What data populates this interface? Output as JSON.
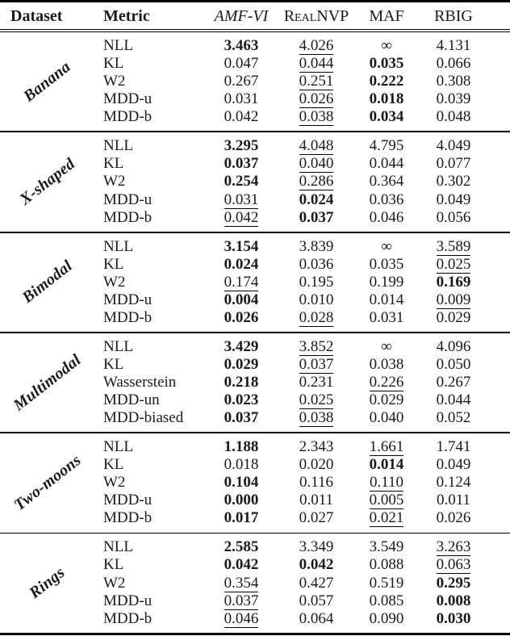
{
  "table": {
    "header": {
      "columns": [
        {
          "label": "Dataset",
          "style": "bold"
        },
        {
          "label": "Metric",
          "style": "bold"
        },
        {
          "label": "AMF-VI",
          "style": "italic"
        },
        {
          "label": "RealNVP",
          "style": "smallcaps"
        },
        {
          "label": "MAF",
          "style": "plain"
        },
        {
          "label": "RBIG",
          "style": "plain"
        }
      ]
    },
    "emphasis": {
      "bold_means": "best value",
      "underline_means": "second-best value"
    },
    "text_color": "#1a1a1a",
    "rule_color": "#000000",
    "sections": [
      {
        "dataset": "Banana",
        "rows": [
          {
            "metric": "NLL",
            "values": [
              {
                "text": "3.463",
                "style": "bold"
              },
              {
                "text": "4.026",
                "style": "underline"
              },
              {
                "text": "∞",
                "style": "plain"
              },
              {
                "text": "4.131",
                "style": "plain"
              }
            ]
          },
          {
            "metric": "KL",
            "values": [
              {
                "text": "0.047",
                "style": "plain"
              },
              {
                "text": "0.044",
                "style": "underline"
              },
              {
                "text": "0.035",
                "style": "bold"
              },
              {
                "text": "0.066",
                "style": "plain"
              }
            ]
          },
          {
            "metric": "W2",
            "values": [
              {
                "text": "0.267",
                "style": "plain"
              },
              {
                "text": "0.251",
                "style": "underline"
              },
              {
                "text": "0.222",
                "style": "bold"
              },
              {
                "text": "0.308",
                "style": "plain"
              }
            ]
          },
          {
            "metric": "MDD-u",
            "values": [
              {
                "text": "0.031",
                "style": "plain"
              },
              {
                "text": "0.026",
                "style": "underline"
              },
              {
                "text": "0.018",
                "style": "bold"
              },
              {
                "text": "0.039",
                "style": "plain"
              }
            ]
          },
          {
            "metric": "MDD-b",
            "values": [
              {
                "text": "0.042",
                "style": "plain"
              },
              {
                "text": "0.038",
                "style": "underline"
              },
              {
                "text": "0.034",
                "style": "bold"
              },
              {
                "text": "0.048",
                "style": "plain"
              }
            ]
          }
        ]
      },
      {
        "dataset": "X-shaped",
        "rows": [
          {
            "metric": "NLL",
            "values": [
              {
                "text": "3.295",
                "style": "bold"
              },
              {
                "text": "4.048",
                "style": "underline"
              },
              {
                "text": "4.795",
                "style": "plain"
              },
              {
                "text": "4.049",
                "style": "plain"
              }
            ]
          },
          {
            "metric": "KL",
            "values": [
              {
                "text": "0.037",
                "style": "bold"
              },
              {
                "text": "0.040",
                "style": "underline"
              },
              {
                "text": "0.044",
                "style": "plain"
              },
              {
                "text": "0.077",
                "style": "plain"
              }
            ]
          },
          {
            "metric": "W2",
            "values": [
              {
                "text": "0.254",
                "style": "bold"
              },
              {
                "text": "0.286",
                "style": "underline"
              },
              {
                "text": "0.364",
                "style": "plain"
              },
              {
                "text": "0.302",
                "style": "plain"
              }
            ]
          },
          {
            "metric": "MDD-u",
            "values": [
              {
                "text": "0.031",
                "style": "underline"
              },
              {
                "text": "0.024",
                "style": "bold"
              },
              {
                "text": "0.036",
                "style": "plain"
              },
              {
                "text": "0.049",
                "style": "plain"
              }
            ]
          },
          {
            "metric": "MDD-b",
            "values": [
              {
                "text": "0.042",
                "style": "underline"
              },
              {
                "text": "0.037",
                "style": "bold"
              },
              {
                "text": "0.046",
                "style": "plain"
              },
              {
                "text": "0.056",
                "style": "plain"
              }
            ]
          }
        ]
      },
      {
        "dataset": "Bimodal",
        "rows": [
          {
            "metric": "NLL",
            "values": [
              {
                "text": "3.154",
                "style": "bold"
              },
              {
                "text": "3.839",
                "style": "plain"
              },
              {
                "text": "∞",
                "style": "plain"
              },
              {
                "text": "3.589",
                "style": "underline"
              }
            ]
          },
          {
            "metric": "KL",
            "values": [
              {
                "text": "0.024",
                "style": "bold"
              },
              {
                "text": "0.036",
                "style": "plain"
              },
              {
                "text": "0.035",
                "style": "plain"
              },
              {
                "text": "0.025",
                "style": "underline"
              }
            ]
          },
          {
            "metric": "W2",
            "values": [
              {
                "text": "0.174",
                "style": "underline"
              },
              {
                "text": "0.195",
                "style": "plain"
              },
              {
                "text": "0.199",
                "style": "plain"
              },
              {
                "text": "0.169",
                "style": "bold"
              }
            ]
          },
          {
            "metric": "MDD-u",
            "values": [
              {
                "text": "0.004",
                "style": "bold"
              },
              {
                "text": "0.010",
                "style": "plain"
              },
              {
                "text": "0.014",
                "style": "plain"
              },
              {
                "text": "0.009",
                "style": "underline"
              }
            ]
          },
          {
            "metric": "MDD-b",
            "values": [
              {
                "text": "0.026",
                "style": "bold"
              },
              {
                "text": "0.028",
                "style": "underline"
              },
              {
                "text": "0.031",
                "style": "plain"
              },
              {
                "text": "0.029",
                "style": "plain"
              }
            ]
          }
        ]
      },
      {
        "dataset": "Multimodal",
        "rows": [
          {
            "metric": "NLL",
            "values": [
              {
                "text": "3.429",
                "style": "bold"
              },
              {
                "text": "3.852",
                "style": "underline"
              },
              {
                "text": "∞",
                "style": "plain"
              },
              {
                "text": "4.096",
                "style": "plain"
              }
            ]
          },
          {
            "metric": "KL",
            "values": [
              {
                "text": "0.029",
                "style": "bold"
              },
              {
                "text": "0.037",
                "style": "underline"
              },
              {
                "text": "0.038",
                "style": "plain"
              },
              {
                "text": "0.050",
                "style": "plain"
              }
            ]
          },
          {
            "metric": "Wasserstein",
            "values": [
              {
                "text": "0.218",
                "style": "bold"
              },
              {
                "text": "0.231",
                "style": "plain"
              },
              {
                "text": "0.226",
                "style": "underline"
              },
              {
                "text": "0.267",
                "style": "plain"
              }
            ]
          },
          {
            "metric": "MDD-un",
            "values": [
              {
                "text": "0.023",
                "style": "bold"
              },
              {
                "text": "0.025",
                "style": "underline"
              },
              {
                "text": "0.029",
                "style": "plain"
              },
              {
                "text": "0.044",
                "style": "plain"
              }
            ]
          },
          {
            "metric": "MDD-biased",
            "values": [
              {
                "text": "0.037",
                "style": "bold"
              },
              {
                "text": "0.038",
                "style": "underline"
              },
              {
                "text": "0.040",
                "style": "plain"
              },
              {
                "text": "0.052",
                "style": "plain"
              }
            ]
          }
        ]
      },
      {
        "dataset": "Two-moons",
        "rows": [
          {
            "metric": "NLL",
            "values": [
              {
                "text": "1.188",
                "style": "bold"
              },
              {
                "text": "2.343",
                "style": "plain"
              },
              {
                "text": "1.661",
                "style": "underline"
              },
              {
                "text": "1.741",
                "style": "plain"
              }
            ]
          },
          {
            "metric": "KL",
            "values": [
              {
                "text": "0.018",
                "style": "plain"
              },
              {
                "text": "0.020",
                "style": "plain"
              },
              {
                "text": "0.014",
                "style": "bold"
              },
              {
                "text": "0.049",
                "style": "plain"
              }
            ]
          },
          {
            "metric": "W2",
            "values": [
              {
                "text": "0.104",
                "style": "bold"
              },
              {
                "text": "0.116",
                "style": "plain"
              },
              {
                "text": "0.110",
                "style": "underline"
              },
              {
                "text": "0.124",
                "style": "plain"
              }
            ]
          },
          {
            "metric": "MDD-u",
            "values": [
              {
                "text": "0.000",
                "style": "bold"
              },
              {
                "text": "0.011",
                "style": "plain"
              },
              {
                "text": "0.005",
                "style": "underline"
              },
              {
                "text": "0.011",
                "style": "plain"
              }
            ]
          },
          {
            "metric": "MDD-b",
            "values": [
              {
                "text": "0.017",
                "style": "bold"
              },
              {
                "text": "0.027",
                "style": "plain"
              },
              {
                "text": "0.021",
                "style": "underline"
              },
              {
                "text": "0.026",
                "style": "plain"
              }
            ]
          }
        ]
      },
      {
        "dataset": "Rings",
        "rows": [
          {
            "metric": "NLL",
            "values": [
              {
                "text": "2.585",
                "style": "bold"
              },
              {
                "text": "3.349",
                "style": "plain"
              },
              {
                "text": "3.549",
                "style": "plain"
              },
              {
                "text": "3.263",
                "style": "underline"
              }
            ]
          },
          {
            "metric": "KL",
            "values": [
              {
                "text": "0.042",
                "style": "bold"
              },
              {
                "text": "0.042",
                "style": "bold"
              },
              {
                "text": "0.088",
                "style": "plain"
              },
              {
                "text": "0.063",
                "style": "underline"
              }
            ]
          },
          {
            "metric": "W2",
            "values": [
              {
                "text": "0.354",
                "style": "underline"
              },
              {
                "text": "0.427",
                "style": "plain"
              },
              {
                "text": "0.519",
                "style": "plain"
              },
              {
                "text": "0.295",
                "style": "bold"
              }
            ]
          },
          {
            "metric": "MDD-u",
            "values": [
              {
                "text": "0.037",
                "style": "underline"
              },
              {
                "text": "0.057",
                "style": "plain"
              },
              {
                "text": "0.085",
                "style": "plain"
              },
              {
                "text": "0.008",
                "style": "bold"
              }
            ]
          },
          {
            "metric": "MDD-b",
            "values": [
              {
                "text": "0.046",
                "style": "underline"
              },
              {
                "text": "0.064",
                "style": "plain"
              },
              {
                "text": "0.090",
                "style": "plain"
              },
              {
                "text": "0.030",
                "style": "bold"
              }
            ]
          }
        ]
      }
    ]
  }
}
